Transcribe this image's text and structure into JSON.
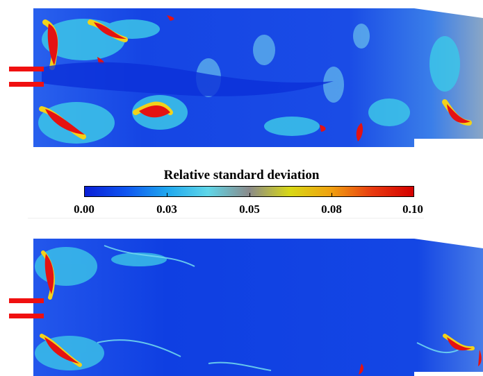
{
  "colorbar": {
    "title": "Relative standard deviation",
    "ticks": [
      "0.00",
      "0.03",
      "0.05",
      "0.08",
      "0.10"
    ],
    "colors": [
      "#0a1fd6",
      "#0f55f0",
      "#1fa7ee",
      "#5fd6e8",
      "#8a8a8a",
      "#d8d815",
      "#f0a010",
      "#e83a10",
      "#d40000"
    ]
  },
  "panels": [
    {
      "name": "top-field",
      "intensity": "high"
    },
    {
      "name": "bottom-field",
      "intensity": "low"
    }
  ],
  "colors": {
    "field_blue": "#1a4be6",
    "field_deep": "#0b2fd8",
    "cyan": "#3cc6e8",
    "red": "#e41212",
    "yellow": "#f2d21a",
    "gray": "#9aa7b5",
    "injector_red": "#f01010"
  }
}
